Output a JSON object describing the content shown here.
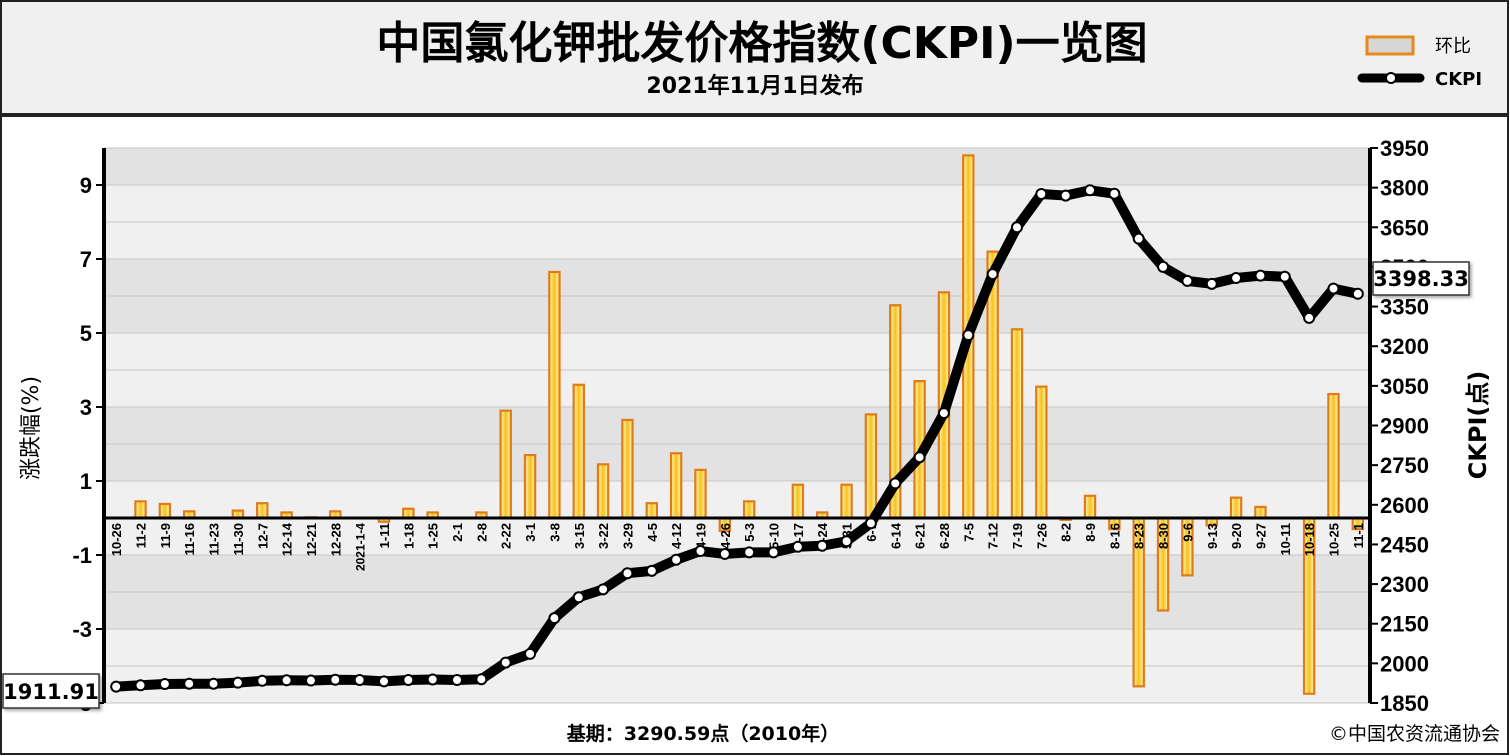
{
  "chart_data": {
    "type": "bar+line",
    "title": "中国氯化钾批发价格指数(CKPI)一览图",
    "subtitle": "2021年11月1日发布",
    "left_axis_label": "涨跌幅(%)",
    "right_axis_label": "CKPI(点)",
    "left_ticks": [
      "9",
      "7",
      "5",
      "3",
      "1",
      "-1",
      "-3",
      "-5"
    ],
    "right_ticks": [
      "3950",
      "3800",
      "3650",
      "3500",
      "3350",
      "3200",
      "3050",
      "2900",
      "2750",
      "2600",
      "2450",
      "2300",
      "2150",
      "2000",
      "1850"
    ],
    "left_ylim": [
      -5,
      10
    ],
    "right_ylim": [
      1850,
      3950
    ],
    "legend": {
      "bar_label": "环比",
      "line_label": "CKPI",
      "position": "top-right"
    },
    "categories": [
      "10-26",
      "11-2",
      "11-9",
      "11-16",
      "11-23",
      "11-30",
      "12-7",
      "12-14",
      "12-21",
      "12-28",
      "2021-1-4",
      "1-11",
      "1-18",
      "1-25",
      "2-1",
      "2-8",
      "2-22",
      "3-1",
      "3-8",
      "3-15",
      "3-22",
      "3-29",
      "4-5",
      "4-12",
      "4-19",
      "4-26",
      "5-3",
      "5-10",
      "5-17",
      "5-24",
      "5-31",
      "6-7",
      "6-14",
      "6-21",
      "6-28",
      "7-5",
      "7-12",
      "7-19",
      "7-26",
      "8-2",
      "8-9",
      "8-16",
      "8-23",
      "8-30",
      "9-6",
      "9-13",
      "9-20",
      "9-27",
      "10-11",
      "10-18",
      "10-25",
      "11-1"
    ],
    "series": [
      {
        "name": "环比",
        "kind": "bar",
        "values": [
          0,
          0.45,
          0.38,
          0.18,
          0,
          0.2,
          0.4,
          0.15,
          0.02,
          0.18,
          0,
          -0.1,
          0.25,
          0.15,
          0,
          0.15,
          2.9,
          1.7,
          6.65,
          3.6,
          1.45,
          2.65,
          0.4,
          1.75,
          1.3,
          -0.35,
          0.45,
          0,
          0.9,
          0.15,
          0.9,
          2.8,
          5.75,
          3.7,
          6.1,
          9.8,
          7.2,
          5.1,
          3.55,
          -0.05,
          0.6,
          -0.3,
          -4.55,
          -2.5,
          -1.55,
          -0.2,
          0.55,
          0.3,
          0,
          -4.75,
          3.35,
          -0.3
        ]
      },
      {
        "name": "CKPI",
        "kind": "line",
        "values": [
          1911.91,
          1917,
          1922,
          1923,
          1923,
          1927,
          1934,
          1936,
          1935,
          1938,
          1937,
          1932,
          1937,
          1939,
          1937,
          1940,
          2003,
          2036,
          2171,
          2250,
          2280,
          2341,
          2350,
          2392,
          2425,
          2414,
          2420,
          2420,
          2441,
          2445,
          2462,
          2530,
          2681,
          2780,
          2947,
          3242,
          3473,
          3650,
          3776,
          3770,
          3790,
          3777,
          3607,
          3500,
          3447,
          3436,
          3458,
          3467,
          3463,
          3307,
          3418,
          3398.33
        ]
      }
    ],
    "annotations": {
      "first_value": "1911.91",
      "last_value": "3398.33"
    },
    "footer_left": "基期：3290.59点（2010年）",
    "footer_right": "©中国农资流通协会"
  }
}
